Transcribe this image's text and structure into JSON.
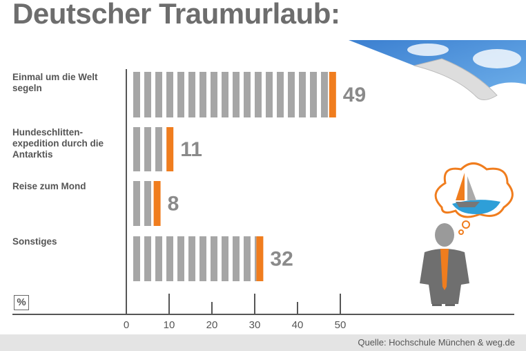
{
  "chart_data": {
    "type": "bar",
    "orientation": "horizontal",
    "title": "Deutscher Traumurlaub:",
    "categories": [
      "Einmal um die Welt segeln",
      "Hundeschlitten-expedition durch die Antarktis",
      "Reise zum Mond",
      "Sonstiges"
    ],
    "values": [
      49,
      11,
      8,
      32
    ],
    "color": "#a6a6a6",
    "accent_color": "#f07d1e",
    "xlim": [
      0,
      50
    ],
    "xticks": [
      0,
      10,
      20,
      30,
      40,
      50
    ],
    "unit_label": "%",
    "source": "Quelle: Hochschule München & weg.de"
  }
}
